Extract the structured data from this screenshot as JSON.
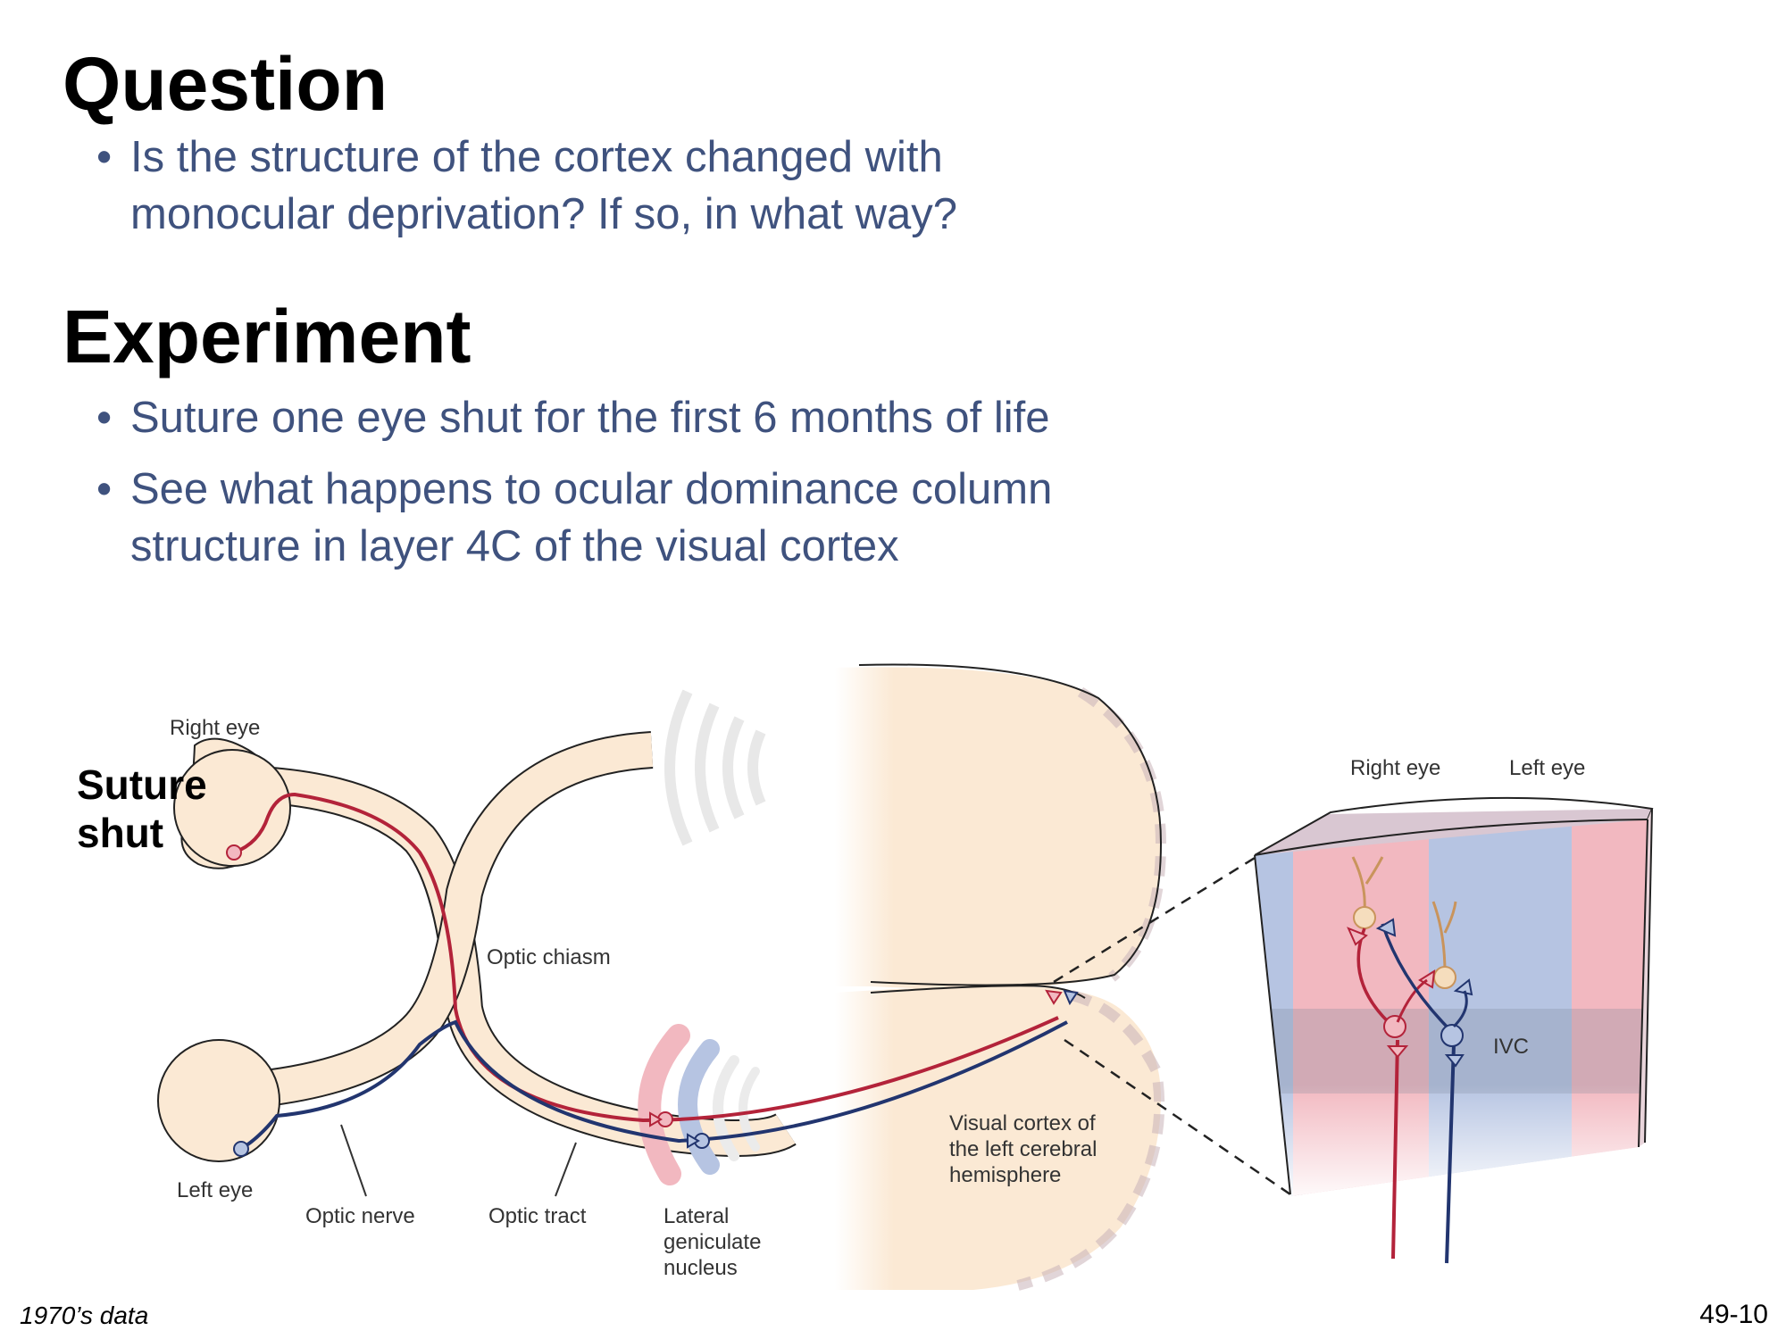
{
  "question": {
    "heading": "Question",
    "bullets": [
      "Is the structure of the cortex changed with monocular deprivation? If so, in what way?"
    ]
  },
  "experiment": {
    "heading": "Experiment",
    "bullets": [
      "Suture one eye shut for the first 6 months of life",
      "See what happens to ocular dominance column structure in layer 4C of the visual cortex"
    ]
  },
  "diagram": {
    "right_eye": "Right eye",
    "left_eye": "Left eye",
    "optic_chiasm": "Optic chiasm",
    "optic_nerve": "Optic nerve",
    "optic_tract": "Optic tract",
    "lgn_lines": [
      "Lateral",
      "geniculate",
      "nucleus"
    ],
    "cortex_lines": [
      "Visual cortex of",
      "the left cerebral",
      "hemisphere"
    ],
    "inset_right_eye": "Right eye",
    "inset_left_eye": "Left eye",
    "ivc": "IVC",
    "suture_lines": [
      "Suture",
      "shut"
    ],
    "colors": {
      "right_pathway": "#b3233a",
      "left_pathway": "#22356f",
      "tissue": "#fbe9d4",
      "right_column": "#f2b8c0",
      "left_column": "#b6c4e2",
      "neuron": "#f5ddbd"
    }
  },
  "footer": {
    "source": "1970’s data",
    "slide_number": "49-10"
  }
}
